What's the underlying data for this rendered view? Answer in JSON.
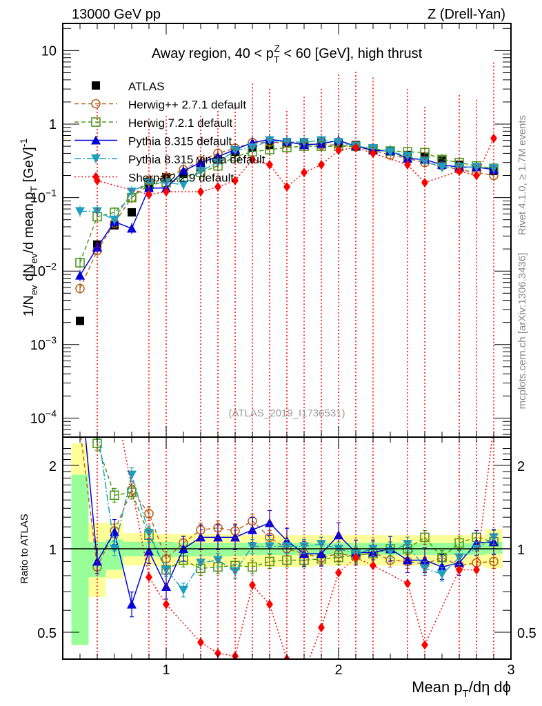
{
  "chart_data": [
    {
      "type": "scatter",
      "panel": "main",
      "title": "Away region, 40 < p_T^Z < 60 [GeV], high thrust",
      "header_left": "13000 GeV pp",
      "header_right": "Z (Drell-Yan)",
      "ylabel": "1/N_ev dN_ev/d mean p_T [GeV]^-1",
      "xlabel": "Mean p_T/dη dϕ",
      "yscale": "log",
      "ylim": [
        6e-05,
        20
      ],
      "xlim": [
        0.4,
        3.0
      ],
      "ytick_labels": [
        "10",
        "1",
        "10^-1",
        "10^-2",
        "10^-3",
        "10^-4"
      ],
      "ytick_values": [
        10,
        1,
        0.1,
        0.01,
        0.001,
        0.0001
      ],
      "xtick_labels": [
        "1",
        "2",
        "3"
      ],
      "xtick_values": [
        1,
        2,
        3
      ],
      "legend_position": "top-left",
      "watermark": "(ATLAS_2019_I1736531)",
      "side_label_top": "Rivet 4.1.0, ≥ 1.7M events",
      "side_label_bottom": "mcplots.cern.ch [arXiv:1306.3436]",
      "x": [
        0.5,
        0.6,
        0.7,
        0.8,
        0.9,
        1.0,
        1.1,
        1.2,
        1.3,
        1.4,
        1.5,
        1.6,
        1.7,
        1.8,
        1.9,
        2.0,
        2.1,
        2.2,
        2.3,
        2.4,
        2.5,
        2.6,
        2.7,
        2.8,
        2.9
      ],
      "series": [
        {
          "name": "ATLAS",
          "color": "#000000",
          "marker": "square-filled",
          "line": "none",
          "values": [
            0.0021,
            0.023,
            0.042,
            0.063,
            0.14,
            0.19,
            0.21,
            0.26,
            0.33,
            0.42,
            0.48,
            0.52,
            0.55,
            0.56,
            0.56,
            0.55,
            0.52,
            0.47,
            0.43,
            0.38,
            0.36,
            0.32,
            0.28,
            0.26,
            0.23
          ]
        },
        {
          "name": "Herwig++ 2.7.1 default",
          "color": "#b5651d",
          "marker": "circle-open",
          "line": "dashed",
          "values": [
            0.0058,
            0.019,
            0.045,
            0.1,
            0.17,
            0.19,
            0.24,
            0.32,
            0.4,
            0.47,
            0.56,
            0.57,
            0.55,
            0.54,
            0.52,
            0.52,
            0.49,
            0.44,
            0.38,
            0.34,
            0.3,
            0.27,
            0.24,
            0.22,
            0.2
          ]
        },
        {
          "name": "Herwig 7.2.1 default",
          "color": "#4a9a1a",
          "marker": "square-open",
          "line": "dashed",
          "values": [
            0.013,
            0.055,
            0.063,
            0.1,
            0.15,
            0.16,
            0.19,
            0.22,
            0.27,
            0.36,
            0.42,
            0.45,
            0.48,
            0.5,
            0.5,
            0.5,
            0.5,
            0.46,
            0.43,
            0.42,
            0.41,
            0.33,
            0.3,
            0.27,
            0.25
          ]
        },
        {
          "name": "Pythia 8.315 default",
          "color": "#0000dd",
          "marker": "triangle-up-filled",
          "line": "solid",
          "values": [
            0.0087,
            0.021,
            0.047,
            0.038,
            0.135,
            0.135,
            0.23,
            0.3,
            0.36,
            0.45,
            0.56,
            0.62,
            0.58,
            0.52,
            0.54,
            0.6,
            0.5,
            0.44,
            0.43,
            0.34,
            0.33,
            0.28,
            0.26,
            0.26,
            0.24
          ]
        },
        {
          "name": "Pythia 8.315 vincia default",
          "color": "#1e9fbf",
          "marker": "triangle-down-filled",
          "line": "dashdot",
          "values": [
            0.065,
            0.065,
            0.05,
            0.12,
            0.16,
            0.16,
            0.15,
            0.23,
            0.3,
            0.44,
            0.48,
            0.6,
            0.57,
            0.57,
            0.6,
            0.57,
            0.5,
            0.47,
            0.42,
            0.37,
            0.31,
            0.26,
            0.26,
            0.26,
            0.25
          ]
        },
        {
          "name": "Sherpa 2.2.9 default",
          "color": "#ff0000",
          "marker": "diamond-filled",
          "line": "dotted",
          "values": [
            null,
            0.17,
            null,
            null,
            0.11,
            0.12,
            null,
            0.12,
            0.14,
            0.17,
            0.33,
            0.28,
            0.14,
            0.22,
            0.28,
            0.44,
            0.48,
            0.4,
            null,
            0.28,
            0.16,
            null,
            0.23,
            0.2,
            0.64
          ]
        }
      ]
    },
    {
      "type": "scatter",
      "panel": "ratio",
      "ylabel": "Ratio to ATLAS",
      "yscale": "log",
      "ylim": [
        0.43,
        2.4
      ],
      "ytick_labels": [
        "2",
        "1",
        "0.5"
      ],
      "ytick_values": [
        2,
        1,
        0.5
      ],
      "xlim": [
        0.4,
        3.0
      ],
      "x": [
        0.5,
        0.6,
        0.7,
        0.8,
        0.9,
        1.0,
        1.1,
        1.2,
        1.3,
        1.4,
        1.5,
        1.6,
        1.7,
        1.8,
        1.9,
        2.0,
        2.1,
        2.2,
        2.3,
        2.4,
        2.5,
        2.6,
        2.7,
        2.8,
        2.9
      ],
      "bands": {
        "stat_color": "#99ff99",
        "total_color": "#ffff99",
        "stat_lo": [
          0.45,
          0.79,
          0.84,
          0.94,
          0.94,
          0.93,
          0.94,
          0.94,
          0.94,
          0.94,
          0.95,
          0.95,
          0.95,
          0.95,
          0.95,
          0.95,
          0.95,
          0.95,
          0.95,
          0.95,
          0.95,
          0.95,
          0.95,
          0.95,
          0.96
        ],
        "stat_hi": [
          1.85,
          1.06,
          1.08,
          1.06,
          1.06,
          1.06,
          1.05,
          1.05,
          1.05,
          1.05,
          1.05,
          1.05,
          1.05,
          1.05,
          1.05,
          1.05,
          1.05,
          1.05,
          1.05,
          1.05,
          1.05,
          1.05,
          1.05,
          1.05,
          1.06
        ],
        "total_lo": [
          0.45,
          0.67,
          0.78,
          0.87,
          0.87,
          0.86,
          0.87,
          0.86,
          0.86,
          0.86,
          0.86,
          0.86,
          0.86,
          0.86,
          0.87,
          0.87,
          0.87,
          0.87,
          0.87,
          0.87,
          0.87,
          0.87,
          0.87,
          0.87,
          0.85
        ],
        "total_hi": [
          2.4,
          1.24,
          1.24,
          1.14,
          1.14,
          1.13,
          1.13,
          1.13,
          1.13,
          1.13,
          1.12,
          1.12,
          1.12,
          1.12,
          1.12,
          1.12,
          1.12,
          1.12,
          1.12,
          1.12,
          1.12,
          1.12,
          1.12,
          1.12,
          1.18
        ]
      },
      "series": [
        {
          "name": "Herwig++ 2.7.1 default",
          "values": [
            2.7,
            0.86,
            1.16,
            1.63,
            1.34,
            0.92,
            1.05,
            1.17,
            1.19,
            1.16,
            1.26,
            1.1,
            1.0,
            0.96,
            0.93,
            0.96,
            0.94,
            0.97,
            0.91,
            0.9,
            0.88,
            0.93,
            0.87,
            0.89,
            0.9
          ]
        },
        {
          "name": "Herwig 7.2.1 default",
          "values": [
            6.0,
            2.4,
            1.56,
            1.6,
            1.12,
            0.84,
            0.91,
            0.85,
            0.86,
            0.87,
            0.86,
            0.9,
            0.91,
            0.91,
            0.92,
            0.93,
            0.95,
            0.96,
            1.0,
            1.0,
            1.1,
            0.93,
            1.05,
            1.1,
            1.06
          ]
        },
        {
          "name": "Pythia 8.315 default",
          "values": [
            4.1,
            0.9,
            1.15,
            0.63,
            0.98,
            0.73,
            1.0,
            1.1,
            1.1,
            1.1,
            1.17,
            1.24,
            1.07,
            0.96,
            0.96,
            1.12,
            0.97,
            0.97,
            1.0,
            0.91,
            0.91,
            0.86,
            0.89,
            1.05,
            1.06
          ]
        },
        {
          "name": "Pythia 8.315 vincia default",
          "values": [
            31,
            2.8,
            1.0,
            1.85,
            1.14,
            0.84,
            0.71,
            0.89,
            0.91,
            0.83,
            1.02,
            1.02,
            1.02,
            1.02,
            1.04,
            1.0,
            0.96,
            1.0,
            0.98,
            1.04,
            0.85,
            0.81,
            0.93,
            1.0,
            1.1
          ]
        },
        {
          "name": "Sherpa 2.2.9 default",
          "values": [
            null,
            7.4,
            null,
            null,
            0.79,
            0.63,
            null,
            0.46,
            0.42,
            0.41,
            0.74,
            0.63,
            0.4,
            0.36,
            0.52,
            0.82,
            0.93,
            0.87,
            null,
            0.75,
            0.45,
            null,
            0.84,
            0.84,
            2.8
          ]
        }
      ]
    }
  ]
}
